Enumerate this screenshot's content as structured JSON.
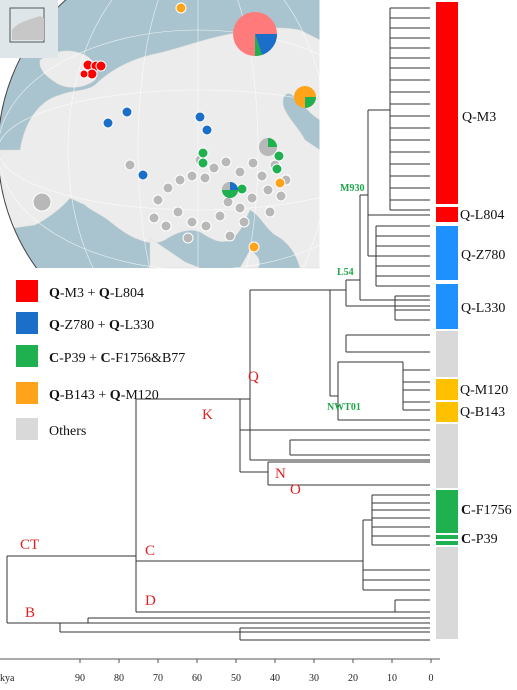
{
  "legend": {
    "items": [
      {
        "color": "#ff0000",
        "hap1": "Q",
        "sub1": "-M3",
        "hap2": "Q",
        "sub2": "-L804"
      },
      {
        "color": "#1b6fc9",
        "hap1": "Q",
        "sub1": "-Z780",
        "hap2": "Q",
        "sub2": "-L330"
      },
      {
        "color": "#1fb04f",
        "hap1": "C",
        "sub1": "-P39",
        "hap2": "C",
        "sub2": "-F1756&B77"
      },
      {
        "color": "#ffa31a",
        "hap1": "Q",
        "sub1": "-B143",
        "hap2": "Q",
        "sub2": "-M120"
      }
    ],
    "others": {
      "color": "#d9d9d9",
      "label": "Others"
    },
    "plus": " + "
  },
  "clades": {
    "M3": {
      "prefix": "Q",
      "suffix": "-M3",
      "color": "#ff0000"
    },
    "L804": {
      "prefix": "Q",
      "suffix": "-L804",
      "color": "#ff0000"
    },
    "Z780": {
      "prefix": "Q",
      "suffix": "-Z780",
      "color": "#1e90ff"
    },
    "L330": {
      "prefix": "Q",
      "suffix": "-L330",
      "color": "#1e90ff"
    },
    "M120": {
      "prefix": "Q",
      "suffix": "-M120",
      "color": "#ffc000"
    },
    "B143": {
      "prefix": "Q",
      "suffix": "-B143",
      "color": "#ffc000"
    },
    "F1756": {
      "prefix": "C",
      "suffix": "-F1756",
      "color": "#1fb04f"
    },
    "P39": {
      "prefix": "C",
      "suffix": "-P39",
      "color": "#1fb04f"
    }
  },
  "node_labels": {
    "m930": "M930",
    "l54": "L54",
    "nwt01": "NWT01",
    "q": "Q",
    "k": "K",
    "n": "N",
    "o": "O",
    "ct": "CT",
    "c": "C",
    "d": "D",
    "b": "B"
  },
  "axis": {
    "unit": "kya",
    "ticks": [
      "90",
      "80",
      "70",
      "60",
      "50",
      "40",
      "30",
      "20",
      "10",
      "0"
    ],
    "tick_values": [
      90,
      80,
      70,
      60,
      50,
      40,
      30,
      20,
      10,
      0
    ]
  },
  "colors": {
    "node_red": "#e02020",
    "node_green": "#1fa64a",
    "tree": "#333333"
  }
}
